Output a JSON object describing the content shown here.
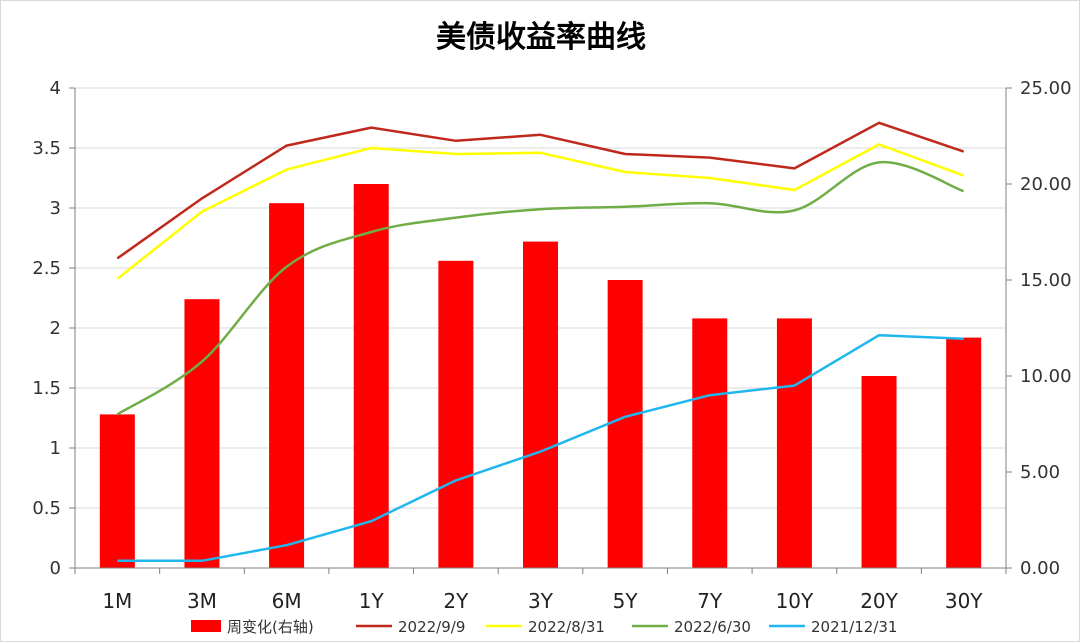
{
  "chart_data": {
    "type": "bar+line",
    "title": "美债收益率曲线",
    "categories": [
      "1M",
      "3M",
      "6M",
      "1Y",
      "2Y",
      "3Y",
      "5Y",
      "7Y",
      "10Y",
      "20Y",
      "30Y"
    ],
    "left_axis": {
      "min": 0,
      "max": 4,
      "step": 0.5,
      "tick_labels": [
        "0",
        "0.5",
        "1",
        "1.5",
        "2",
        "2.5",
        "3",
        "3.5",
        "4"
      ]
    },
    "right_axis": {
      "min": 0,
      "max": 25,
      "step": 5,
      "tick_labels": [
        "0.00",
        "5.00",
        "10.00",
        "15.00",
        "20.00",
        "25.00"
      ]
    },
    "bar_series": {
      "name": "周变化(右轴)",
      "color": "#ff0000",
      "axis": "right",
      "values": [
        8,
        14,
        19,
        20,
        16,
        17,
        15,
        13,
        13,
        10,
        12
      ]
    },
    "line_series": [
      {
        "name": "2022/9/9",
        "color": "#c0281c",
        "axis": "left",
        "values": [
          2.58,
          3.08,
          3.52,
          3.67,
          3.56,
          3.61,
          3.45,
          3.42,
          3.33,
          3.71,
          3.47
        ]
      },
      {
        "name": "2022/8/31",
        "color": "#ffff00",
        "axis": "left",
        "values": [
          2.41,
          2.97,
          3.32,
          3.5,
          3.45,
          3.46,
          3.3,
          3.25,
          3.15,
          3.53,
          3.27
        ]
      },
      {
        "name": "2022/6/30",
        "color": "#70ad47",
        "axis": "left",
        "values": [
          1.28,
          1.72,
          2.51,
          2.8,
          2.92,
          2.99,
          3.01,
          3.04,
          2.98,
          3.38,
          3.14
        ]
      },
      {
        "name": "2021/12/31",
        "color": "#1fb7ee",
        "axis": "left",
        "values": [
          0.06,
          0.06,
          0.19,
          0.39,
          0.73,
          0.97,
          1.26,
          1.44,
          1.52,
          1.94,
          1.91
        ]
      }
    ],
    "legend_position": "bottom",
    "grid": true
  }
}
